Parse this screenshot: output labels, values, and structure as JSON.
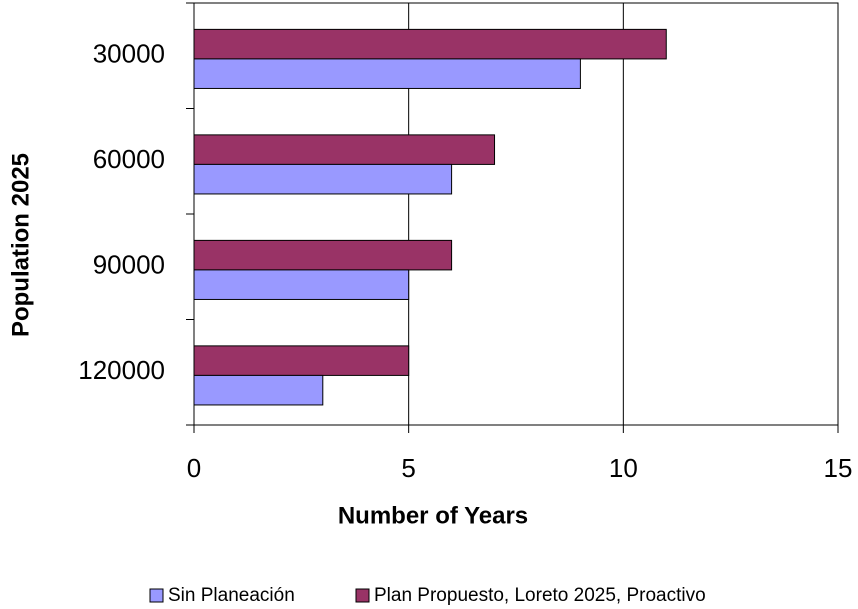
{
  "chart_data": {
    "type": "bar",
    "orientation": "horizontal",
    "categories": [
      "30000",
      "60000",
      "90000",
      "120000"
    ],
    "series": [
      {
        "name": "Sin Planeación",
        "color": "#9999ff",
        "values": [
          9,
          6,
          5,
          3
        ]
      },
      {
        "name": "Plan Propuesto, Loreto 2025, Proactivo",
        "color": "#993366",
        "values": [
          11,
          7,
          6,
          5
        ]
      }
    ],
    "xlim": [
      0,
      15
    ],
    "xticks": [
      0,
      5,
      10,
      15
    ],
    "xlabel": "Number of Years",
    "ylabel": "Population 2025",
    "grid": true,
    "legend": "bottom"
  }
}
